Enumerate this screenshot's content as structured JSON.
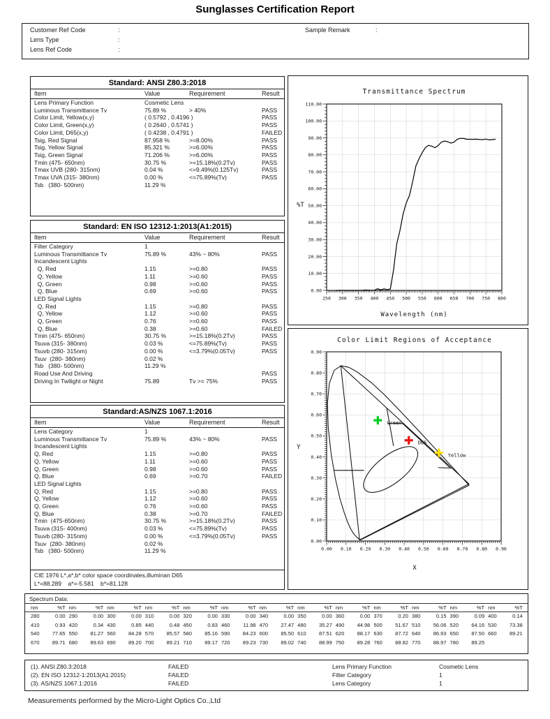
{
  "title": "Sunglasses Certification Report",
  "info": {
    "left": [
      {
        "label": "Customer Ref Code",
        "colon": ":",
        "value": ""
      },
      {
        "label": "Lens Type",
        "colon": ":",
        "value": ""
      },
      {
        "label": "Lens Ref Code",
        "colon": ":",
        "value": ""
      }
    ],
    "right": [
      {
        "label": "Sample Remark",
        "colon": ":",
        "value": ""
      }
    ]
  },
  "standards": [
    {
      "title": "Standard: ANSI Z80.3:2018",
      "columns": [
        "Item",
        "Value",
        "Requirement",
        "Result"
      ],
      "rows": [
        [
          "Lens Primary Function",
          "Cosmetic Lens",
          "",
          ""
        ],
        [
          "Luminous Transmittance Tv",
          "75.89 %",
          "> 40%",
          "PASS"
        ],
        [
          "Color Limit, Yellow(x,y)",
          "( 0.5792 , 0.4196 )",
          "",
          "PASS"
        ],
        [
          "Color Limit, Green(x,y)",
          "( 0.2640 , 0.5741 )",
          "",
          "PASS"
        ],
        [
          "Color Limit, D65(x,y)",
          "( 0.4238 , 0.4791 )",
          "",
          "FAILED"
        ],
        [
          "Tsig, Red Signal",
          "87.958 %",
          ">=8.00%",
          "PASS"
        ],
        [
          "Tsig, Yellow Signal",
          "85.321 %",
          ">=6.00%",
          "PASS"
        ],
        [
          "Tsig, Green Signal",
          "71.206 %",
          ">=6.00%",
          "PASS"
        ],
        [
          "Tmin (475- 650nm)",
          "30.75 %",
          ">=15.18%(0.2Tv)",
          "PASS"
        ],
        [
          "Tmax UVB (280- 315nm)",
          "0.04 %",
          "<=9.49%(0.125Tv)",
          "PASS"
        ],
        [
          "Tmax UVA (315- 380nm)",
          "0.00 %",
          "<=75.89%(Tv)",
          "PASS"
        ],
        [
          "Tsb   (380- 500nm)",
          "11.29 %",
          "",
          ""
        ]
      ]
    },
    {
      "title": "Standard: EN ISO 12312-1:2013(A1:2015)",
      "columns": [
        "Item",
        "Value",
        "Requirement",
        "Result"
      ],
      "rows": [
        [
          "Filter Category",
          "1",
          "",
          ""
        ],
        [
          "Luminous Transmittance Tv",
          "75.89 %",
          "43% ~ 80%",
          "PASS"
        ],
        [
          "Incandescent Lights",
          "",
          "",
          ""
        ],
        [
          "  Q, Red",
          "1.15",
          ">=0.80",
          "PASS"
        ],
        [
          "  Q, Yellow",
          "1.11",
          ">=0.60",
          "PASS"
        ],
        [
          "  Q, Green",
          "0.98",
          ">=0.60",
          "PASS"
        ],
        [
          "  Q, Blue",
          "0.69",
          ">=0.60",
          "PASS"
        ],
        [
          "LED Signal Lights",
          "",
          "",
          ""
        ],
        [
          "  Q, Red",
          "1.15",
          ">=0.80",
          "PASS"
        ],
        [
          "  Q, Yellow",
          "1.12",
          ">=0.60",
          "PASS"
        ],
        [
          "  Q, Green",
          "0.76",
          ">=0.60",
          "PASS"
        ],
        [
          "  Q, Blue",
          "0.38",
          ">=0.60",
          "FAILED"
        ],
        [
          "Tmin (475- 650nm)",
          "30.75 %",
          ">=15.18%(0.2Tv)",
          "PASS"
        ],
        [
          "Tsuva (315- 380nm)",
          "0.03 %",
          "<=75.89%(Tv)",
          "PASS"
        ],
        [
          "Tsuvb (280- 315nm)",
          "0.00 %",
          "<=3.79%(0.05Tv)",
          "PASS"
        ],
        [
          "Tsuv  (280- 380nm)",
          "0.02 %",
          "",
          ""
        ],
        [
          "Tsb   (380- 500nm)",
          "11.29 %",
          "",
          ""
        ],
        [
          "Road Use And Driving",
          "",
          "",
          "PASS"
        ],
        [
          "Driving In Twilight or Night",
          "75.89",
          "Tv >= 75%",
          "PASS"
        ]
      ]
    },
    {
      "title": "Standard:AS/NZS 1067.1:2016",
      "columns": [
        "Item",
        "Value",
        "Requirement",
        "Result"
      ],
      "rows": [
        [
          "Lens Category",
          "1",
          "",
          ""
        ],
        [
          "Luminous Transmittance Tv",
          "75.89 %",
          "43% ~ 80%",
          "PASS"
        ],
        [
          "Incandescent Lights",
          "",
          "",
          ""
        ],
        [
          "Q, Red",
          "1.15",
          ">=0.80",
          "PASS"
        ],
        [
          "Q, Yellow",
          "1.11",
          ">=0.60",
          "PASS"
        ],
        [
          "Q, Green",
          "0.98",
          ">=0.60",
          "PASS"
        ],
        [
          "Q, Blue",
          "0.69",
          ">=0.70",
          "FAILED"
        ],
        [
          "LED Signal Lights",
          "",
          "",
          ""
        ],
        [
          "Q, Red",
          "1.15",
          ">=0.80",
          "PASS"
        ],
        [
          "Q, Yellow",
          "1.12",
          ">=0.60",
          "PASS"
        ],
        [
          "Q, Green",
          "0.76",
          ">=0.60",
          "PASS"
        ],
        [
          "Q, Blue",
          "0.38",
          ">=0.70",
          "FAILED"
        ],
        [
          "Tmin  (475-650nm)",
          "30.75 %",
          ">=15.18%(0.2Tv)",
          "PASS"
        ],
        [
          "Tsuva (315- 400nm)",
          "0.03 %",
          "<=75.89%(Tv)",
          "PASS"
        ],
        [
          "Tsuvb (280- 315nm)",
          "0.00 %",
          "<=3.79%(0.05Tv)",
          "PASS"
        ],
        [
          "Tsuv  (280- 380nm)",
          "0.02 %",
          "",
          ""
        ],
        [
          "Tsb   (380- 500nm)",
          "11.29 %",
          "",
          ""
        ]
      ],
      "cie_note": [
        "CIE 1976 L*,a*,b* color space coordinates,illuminan D65",
        "L*=88.289    a*=-5.581    b*=81.128"
      ]
    }
  ],
  "chart_data": [
    {
      "type": "line",
      "title": "Transmittance Spectrum",
      "xlabel": "Wavelength (nm)",
      "ylabel": "%T",
      "xlim": [
        250,
        800
      ],
      "ylim": [
        0,
        110
      ],
      "xtick_step": 50,
      "ytick_step": 10,
      "grid": true,
      "legend": "none",
      "line_color": "#000000",
      "points": [
        [
          280,
          0.0
        ],
        [
          290,
          0.0
        ],
        [
          300,
          0.0
        ],
        [
          310,
          0.0
        ],
        [
          320,
          0.0
        ],
        [
          330,
          0.0
        ],
        [
          340,
          0.0
        ],
        [
          350,
          0.0
        ],
        [
          360,
          0.0
        ],
        [
          370,
          0.2
        ],
        [
          380,
          0.15
        ],
        [
          390,
          0.09
        ],
        [
          400,
          0.14
        ],
        [
          410,
          0.93
        ],
        [
          420,
          0.34
        ],
        [
          430,
          0.85
        ],
        [
          440,
          0.48
        ],
        [
          450,
          0.83
        ],
        [
          460,
          11.98
        ],
        [
          470,
          27.47
        ],
        [
          480,
          35.27
        ],
        [
          490,
          44.98
        ],
        [
          500,
          51.67
        ],
        [
          510,
          56.06
        ],
        [
          520,
          64.16
        ],
        [
          530,
          73.38
        ],
        [
          540,
          77.65
        ],
        [
          550,
          81.27
        ],
        [
          560,
          84.28
        ],
        [
          570,
          85.57
        ],
        [
          580,
          85.16
        ],
        [
          590,
          84.23
        ],
        [
          600,
          85.5
        ],
        [
          610,
          87.51
        ],
        [
          620,
          88.17
        ],
        [
          630,
          87.72
        ],
        [
          640,
          86.93
        ],
        [
          650,
          87.5
        ],
        [
          660,
          89.21
        ],
        [
          670,
          89.71
        ],
        [
          680,
          89.63
        ],
        [
          690,
          89.2
        ],
        [
          700,
          89.21
        ],
        [
          710,
          89.17
        ],
        [
          720,
          89.23
        ],
        [
          730,
          89.02
        ],
        [
          740,
          88.99
        ],
        [
          750,
          89.28
        ],
        [
          760,
          88.82
        ],
        [
          770,
          88.97
        ],
        [
          780,
          89.25
        ]
      ]
    },
    {
      "type": "scatter",
      "title": "Color Limit Regions of Acceptance",
      "xlabel": "X",
      "ylabel": "Y",
      "xlim": [
        0,
        0.9
      ],
      "ylim": [
        0,
        0.9
      ],
      "tick_step": 0.1,
      "grid": true,
      "markers": [
        {
          "name": "Green",
          "x": 0.264,
          "y": 0.5741,
          "marker_color": "#00cc22",
          "label_color": "#44dd44"
        },
        {
          "name": "D65",
          "x": 0.4238,
          "y": 0.4791,
          "marker_color": "#ee1111",
          "label_color": "#ff8888"
        },
        {
          "name": "Yellow",
          "x": 0.5792,
          "y": 0.4196,
          "marker_color": "#ffe000",
          "label_color": "#ffff00"
        }
      ],
      "spectral_locus": [
        [
          0.1741,
          0.005
        ],
        [
          0.1726,
          0.0048
        ],
        [
          0.1689,
          0.0069
        ],
        [
          0.1644,
          0.0109
        ],
        [
          0.1566,
          0.0177
        ],
        [
          0.151,
          0.0227
        ],
        [
          0.144,
          0.0297
        ],
        [
          0.1355,
          0.0399
        ],
        [
          0.1241,
          0.0578
        ],
        [
          0.1096,
          0.0868
        ],
        [
          0.0913,
          0.1327
        ],
        [
          0.0687,
          0.2007
        ],
        [
          0.0454,
          0.295
        ],
        [
          0.0235,
          0.4127
        ],
        [
          0.0082,
          0.5384
        ],
        [
          0.0039,
          0.6548
        ],
        [
          0.0139,
          0.7502
        ],
        [
          0.0389,
          0.812
        ],
        [
          0.0743,
          0.8338
        ],
        [
          0.1142,
          0.8262
        ],
        [
          0.1547,
          0.8059
        ],
        [
          0.2296,
          0.7543
        ],
        [
          0.3016,
          0.6923
        ],
        [
          0.3731,
          0.6245
        ],
        [
          0.4441,
          0.5547
        ],
        [
          0.5125,
          0.4866
        ],
        [
          0.5752,
          0.4242
        ],
        [
          0.627,
          0.3725
        ],
        [
          0.6658,
          0.334
        ],
        [
          0.6915,
          0.3083
        ],
        [
          0.719,
          0.2809
        ],
        [
          0.7347,
          0.2653
        ]
      ],
      "triangle": [
        [
          0.073,
          0.834
        ],
        [
          0.734,
          0.272
        ],
        [
          0.17,
          0.005
        ]
      ],
      "segments": [
        [
          [
            0.039,
            0.336
          ],
          [
            0.193,
            0.336
          ]
        ],
        [
          [
            0.31,
            0.633
          ],
          [
            0.345,
            0.452
          ]
        ],
        [
          [
            0.317,
            0.559
          ],
          [
            0.392,
            0.559
          ]
        ],
        [
          [
            0.392,
            0.559
          ],
          [
            0.636,
            0.349
          ]
        ],
        [
          [
            0.575,
            0.349
          ],
          [
            0.648,
            0.347
          ]
        ]
      ],
      "ellipse": {
        "cx": 0.33,
        "cy": 0.34,
        "rx": 0.163,
        "ry": 0.068,
        "angle_deg": 38
      }
    }
  ],
  "spectrum_table": {
    "title": "Spectrum Data:",
    "col_headers": [
      "nm",
      "%T"
    ]
  },
  "summary": {
    "standards": [
      {
        "name": "(1). ANSI Z80.3:2018",
        "result": "FAILED"
      },
      {
        "name": "(2). EN ISO 12312-1:2013(A1:2015)",
        "result": "FAILED"
      },
      {
        "name": "(3). AS/NZS 1067.1:2016",
        "result": "FAILED"
      }
    ],
    "properties": [
      {
        "label": "Lens Primary Function",
        "value": "Cosmetic Lens"
      },
      {
        "label": "Filter Category",
        "value": "1"
      },
      {
        "label": "Lens Category",
        "value": "1"
      }
    ]
  },
  "footer": "Measurements performed by the Micro-Light Optics Co.,Ltd"
}
